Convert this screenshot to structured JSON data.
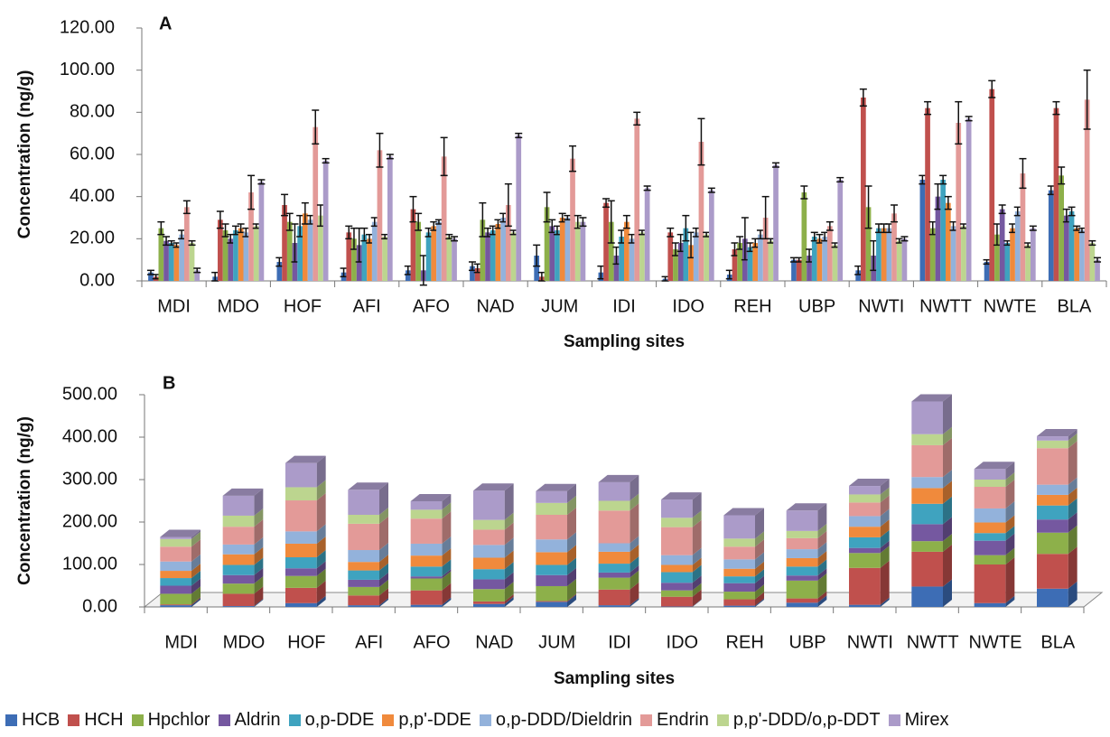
{
  "chart_data": [
    {
      "type": "bar",
      "annotation": "A",
      "x_label": "Sampling sites",
      "y_label": "Concentration (ng/g)",
      "categories": [
        "MDI",
        "MDO",
        "HOF",
        "AFI",
        "AFO",
        "NAD",
        "JUM",
        "IDI",
        "IDO",
        "REH",
        "UBP",
        "NWTI",
        "NWTT",
        "NWTE",
        "BLA"
      ],
      "ylim": [
        0,
        120
      ],
      "yticks": [
        {
          "value": 0,
          "label": "0.00"
        },
        {
          "value": 20,
          "label": "20.00"
        },
        {
          "value": 40,
          "label": "40.00"
        },
        {
          "value": 60,
          "label": "60.00"
        },
        {
          "value": 80,
          "label": "80.00"
        },
        {
          "value": 100,
          "label": "100.00"
        },
        {
          "value": 120,
          "label": "120.00"
        }
      ],
      "series": [
        {
          "name": "HCB",
          "color": "#3d6db5",
          "values": [
            4,
            2,
            9,
            4,
            5,
            7,
            12,
            4,
            1,
            3,
            10,
            5,
            48,
            9,
            43
          ],
          "errors": [
            1,
            2,
            2,
            2,
            2,
            2,
            5,
            3,
            1,
            2,
            1,
            2,
            2,
            1,
            2
          ]
        },
        {
          "name": "HCH",
          "color": "#c0504d",
          "values": [
            2,
            29,
            36,
            23,
            34,
            6,
            2,
            37,
            23,
            15,
            10,
            87,
            82,
            91,
            82
          ],
          "errors": [
            1,
            4,
            5,
            3,
            6,
            2,
            2,
            2,
            2,
            3,
            1,
            4,
            3,
            4,
            3
          ]
        },
        {
          "name": "Hpchlor",
          "color": "#8db04a",
          "values": [
            25,
            24,
            28,
            20,
            28,
            29,
            35,
            28,
            15,
            18,
            42,
            35,
            25,
            22,
            50
          ],
          "errors": [
            3,
            3,
            4,
            5,
            4,
            8,
            7,
            10,
            3,
            3,
            3,
            10,
            3,
            5,
            4
          ]
        },
        {
          "name": "Aldrin",
          "color": "#7558a0",
          "values": [
            19,
            20,
            18,
            17,
            5,
            23,
            26,
            12,
            18,
            20,
            12,
            12,
            40,
            34,
            31
          ],
          "errors": [
            2,
            2,
            9,
            8,
            7,
            2,
            3,
            4,
            4,
            10,
            3,
            7,
            6,
            2,
            3
          ]
        },
        {
          "name": "o,p-DDE",
          "color": "#3fa3bf",
          "values": [
            18,
            24,
            26,
            22,
            23,
            24,
            24,
            21,
            25,
            16,
            21,
            25,
            48,
            18,
            33
          ],
          "errors": [
            1,
            2,
            5,
            3,
            2,
            2,
            2,
            3,
            6,
            2,
            2,
            2,
            2,
            1,
            2
          ]
        },
        {
          "name": "p,p'-DDE",
          "color": "#f08a3c",
          "values": [
            17,
            25,
            32,
            20,
            26,
            27,
            30,
            28,
            17,
            18,
            20,
            25,
            37,
            25,
            25
          ],
          "errors": [
            1,
            2,
            5,
            2,
            2,
            2,
            2,
            3,
            6,
            2,
            2,
            2,
            3,
            2,
            1
          ]
        },
        {
          "name": "o,p-DDD/Dieldrin",
          "color": "#93b2db",
          "values": [
            22,
            23,
            29,
            28,
            28,
            30,
            30,
            20,
            23,
            22,
            21,
            25,
            26,
            33,
            24
          ],
          "errors": [
            2,
            2,
            2,
            2,
            1,
            2,
            1,
            2,
            2,
            2,
            2,
            2,
            2,
            2,
            1
          ]
        },
        {
          "name": "Endrin",
          "color": "#e39a98",
          "values": [
            35,
            42,
            73,
            62,
            59,
            36,
            58,
            77,
            66,
            30,
            26,
            32,
            75,
            51,
            86
          ],
          "errors": [
            3,
            8,
            8,
            8,
            9,
            10,
            6,
            3,
            11,
            10,
            2,
            4,
            10,
            7,
            14
          ]
        },
        {
          "name": "p,p'-DDD/o,p-DDT",
          "color": "#bcd58f",
          "values": [
            18,
            26,
            31,
            21,
            21,
            23,
            28,
            23,
            22,
            19,
            17,
            19,
            26,
            17,
            18
          ],
          "errors": [
            1,
            1,
            5,
            1,
            1,
            1,
            3,
            1,
            1,
            1,
            1,
            1,
            1,
            1,
            1
          ]
        },
        {
          "name": "Mirex",
          "color": "#ab9bc9",
          "values": [
            5,
            47,
            57,
            59,
            20,
            69,
            28,
            44,
            43,
            55,
            48,
            20,
            77,
            25,
            10
          ],
          "errors": [
            1,
            1,
            1,
            1,
            1,
            1,
            2,
            1,
            1,
            1,
            1,
            1,
            1,
            1,
            1
          ]
        }
      ]
    },
    {
      "type": "bar",
      "stacked": true,
      "annotation": "B",
      "x_label": "Sampling sites",
      "y_label": "Concentration (ng/g)",
      "categories": [
        "MDI",
        "MDO",
        "HOF",
        "AFI",
        "AFO",
        "NAD",
        "JUM",
        "IDI",
        "IDO",
        "REH",
        "UBP",
        "NWTI",
        "NWTT",
        "NWTE",
        "BLA"
      ],
      "ylim": [
        0,
        500
      ],
      "yticks": [
        {
          "value": 0,
          "label": "0.00"
        },
        {
          "value": 100,
          "label": "100.00"
        },
        {
          "value": 200,
          "label": "200.00"
        },
        {
          "value": 300,
          "label": "300.00"
        },
        {
          "value": 400,
          "label": "400.00"
        },
        {
          "value": 500,
          "label": "500.00"
        }
      ],
      "series": [
        {
          "values": [
            4,
            2,
            9,
            4,
            5,
            7,
            12,
            4,
            1,
            3,
            10,
            5,
            48,
            9,
            43
          ]
        },
        {
          "values": [
            2,
            29,
            36,
            23,
            34,
            6,
            2,
            37,
            23,
            15,
            10,
            87,
            82,
            91,
            82
          ]
        },
        {
          "values": [
            25,
            24,
            28,
            20,
            28,
            29,
            35,
            28,
            15,
            18,
            42,
            35,
            25,
            22,
            50
          ]
        },
        {
          "values": [
            19,
            20,
            18,
            17,
            5,
            23,
            26,
            12,
            18,
            20,
            12,
            12,
            40,
            34,
            31
          ]
        },
        {
          "values": [
            18,
            24,
            26,
            22,
            23,
            24,
            24,
            21,
            25,
            16,
            21,
            25,
            48,
            18,
            33
          ]
        },
        {
          "values": [
            17,
            25,
            32,
            20,
            26,
            27,
            30,
            28,
            17,
            18,
            20,
            25,
            37,
            25,
            25
          ]
        },
        {
          "values": [
            22,
            23,
            29,
            28,
            28,
            30,
            30,
            20,
            23,
            22,
            21,
            25,
            26,
            33,
            24
          ]
        },
        {
          "values": [
            35,
            42,
            73,
            62,
            59,
            36,
            58,
            77,
            66,
            30,
            26,
            32,
            75,
            51,
            86
          ]
        },
        {
          "values": [
            18,
            26,
            31,
            21,
            21,
            23,
            28,
            23,
            22,
            19,
            17,
            19,
            26,
            17,
            18
          ]
        },
        {
          "values": [
            5,
            47,
            57,
            59,
            20,
            69,
            28,
            44,
            43,
            55,
            48,
            20,
            77,
            25,
            10
          ]
        }
      ]
    }
  ]
}
